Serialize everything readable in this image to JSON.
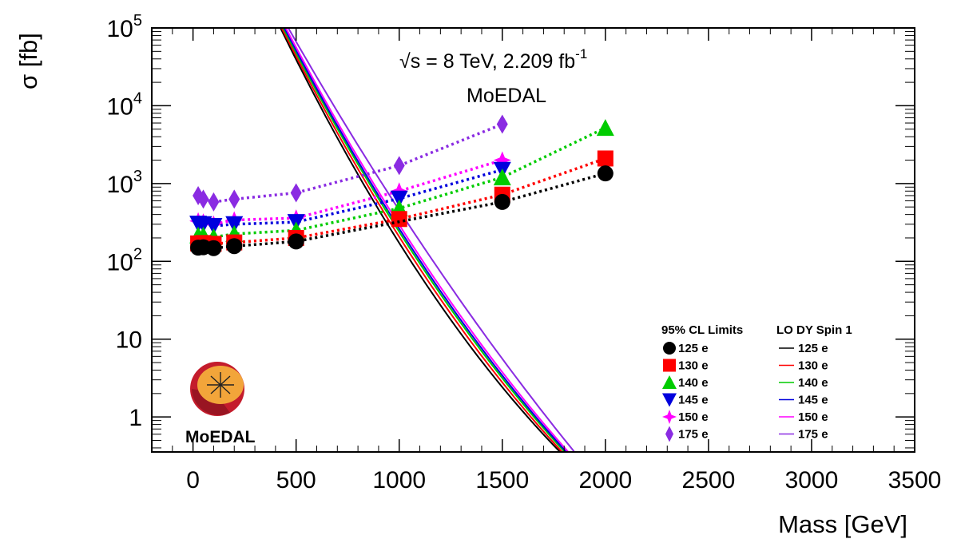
{
  "chart_data": {
    "type": "scatter",
    "title": "",
    "xlabel": "Mass [GeV]",
    "ylabel": "σ [fb]",
    "xlim": [
      -200,
      3500
    ],
    "ylim_log10": [
      -0.45,
      5
    ],
    "y_scale": "log",
    "x_ticks": [
      0,
      500,
      1000,
      1500,
      2000,
      2500,
      3000,
      3500
    ],
    "x_tick_labels": [
      "0",
      "500",
      "1000",
      "1500",
      "2000",
      "2500",
      "3000",
      "3500"
    ],
    "y_ticks": [
      1,
      10,
      100,
      1000,
      10000,
      100000
    ],
    "y_tick_labels": [
      {
        "base": "1",
        "exp": ""
      },
      {
        "base": "10",
        "exp": ""
      },
      {
        "base": "10",
        "exp": "2"
      },
      {
        "base": "10",
        "exp": "3"
      },
      {
        "base": "10",
        "exp": "4"
      },
      {
        "base": "10",
        "exp": "5"
      }
    ],
    "annotations": [
      {
        "text": "√s = 8 TeV, 2.209 fb",
        "sup": "-1"
      },
      {
        "text": "MoEDAL"
      }
    ],
    "legend": {
      "position": "bottom-right",
      "limits_header": "95% CL Limits",
      "theory_header": "LO DY Spin 1"
    },
    "limits": [
      {
        "name": "125 e",
        "color": "#000000",
        "marker": "circle",
        "x": [
          25,
          50,
          100,
          200,
          500,
          1500,
          2000
        ],
        "y": [
          150,
          152,
          148,
          157,
          180,
          580,
          1350
        ]
      },
      {
        "name": "130 e",
        "color": "#ff0000",
        "marker": "square",
        "x": [
          25,
          50,
          100,
          200,
          500,
          1000,
          1500,
          2000
        ],
        "y": [
          170,
          172,
          168,
          175,
          200,
          350,
          720,
          2100
        ]
      },
      {
        "name": "140 e",
        "color": "#00cc00",
        "marker": "triangle-up",
        "x": [
          25,
          50,
          100,
          200,
          500,
          1000,
          1500,
          2000
        ],
        "y": [
          215,
          215,
          205,
          225,
          250,
          480,
          1200,
          5200
        ]
      },
      {
        "name": "145 e",
        "color": "#0000dd",
        "marker": "triangle-down",
        "x": [
          25,
          50,
          100,
          200,
          500,
          1000,
          1500
        ],
        "y": [
          305,
          300,
          285,
          300,
          320,
          640,
          1500
        ]
      },
      {
        "name": "150 e",
        "color": "#ff00ff",
        "marker": "star",
        "x": [
          25,
          50,
          100,
          200,
          500,
          1000,
          1500
        ],
        "y": [
          330,
          320,
          300,
          340,
          360,
          800,
          2000
        ]
      },
      {
        "name": "175 e",
        "color": "#8a2be2",
        "marker": "diamond",
        "x": [
          25,
          50,
          100,
          200,
          500,
          1000,
          1500
        ],
        "y": [
          700,
          630,
          580,
          630,
          760,
          1700,
          5800
        ]
      }
    ],
    "theory": [
      {
        "name": "125 e",
        "color": "#000000",
        "x0": 424,
        "y0": 100000,
        "xf": 967,
        "y_at_xf": 270,
        "x1": 1780,
        "y1": 0.355
      },
      {
        "name": "130 e",
        "color": "#ff0000",
        "x0": 430,
        "y0": 100000,
        "xf": 980,
        "y_at_xf": 285,
        "x1": 1790,
        "y1": 0.355
      },
      {
        "name": "140 e",
        "color": "#00cc00",
        "x0": 437,
        "y0": 100000,
        "xf": 990,
        "y_at_xf": 300,
        "x1": 1802,
        "y1": 0.355
      },
      {
        "name": "145 e",
        "color": "#0000dd",
        "x0": 443,
        "y0": 100000,
        "xf": 998,
        "y_at_xf": 305,
        "x1": 1810,
        "y1": 0.355
      },
      {
        "name": "150 e",
        "color": "#ff00ff",
        "x0": 450,
        "y0": 100000,
        "xf": 1005,
        "y_at_xf": 320,
        "x1": 1820,
        "y1": 0.355
      },
      {
        "name": "175 e",
        "color": "#8a2be2",
        "x0": 462,
        "y0": 100000,
        "xf": 1030,
        "y_at_xf": 390,
        "x1": 1850,
        "y1": 0.355
      }
    ],
    "logo": {
      "text": "MoEDAL",
      "colors": {
        "text": "#1f3a6b",
        "outer": "#c41c2c",
        "inner": "#f2a53a"
      }
    }
  }
}
